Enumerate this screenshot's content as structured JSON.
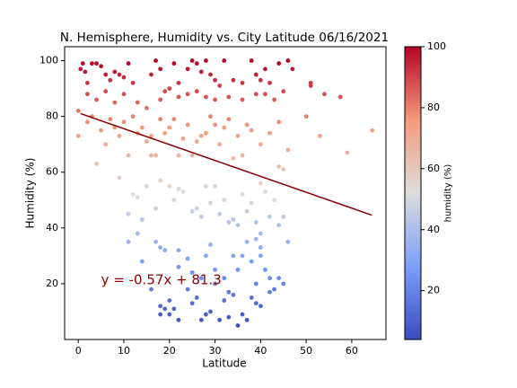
{
  "chart_data": {
    "type": "scatter",
    "title": "N. Hemisphere, Humidity vs. City Latitude  06/16/2021",
    "xlabel": "Latitude",
    "ylabel": "Humidity (%)",
    "colorbar_label": "humidity (%)",
    "colormap": "coolwarm",
    "clim": [
      4,
      100
    ],
    "cticks": [
      20,
      40,
      60,
      80,
      100
    ],
    "xlim": [
      -3,
      67.5
    ],
    "ylim": [
      0,
      105
    ],
    "xticks": [
      0,
      10,
      20,
      30,
      40,
      50,
      60
    ],
    "yticks": [
      20,
      40,
      60,
      80,
      100
    ],
    "regression": {
      "slope": -0.57,
      "intercept": 81.3,
      "x": [
        0.5,
        64.4
      ],
      "color": "#8b0000"
    },
    "annotation": "y = -0.57x + 81.3",
    "x": [
      0.5,
      1,
      1.5,
      2,
      3,
      4,
      5,
      6,
      7,
      8,
      9,
      10,
      11,
      12,
      16,
      17,
      18,
      19,
      21,
      22,
      24,
      25,
      26,
      27,
      28,
      29,
      30,
      31,
      32,
      34,
      36,
      38,
      39,
      40,
      41,
      42,
      44,
      46,
      47,
      51,
      54,
      57.5,
      2,
      4,
      6,
      8,
      10,
      13,
      15,
      18,
      20,
      22,
      24,
      26,
      28,
      30,
      33,
      36,
      39,
      41,
      43,
      45,
      51,
      0,
      0,
      2,
      3,
      5,
      6,
      7,
      8,
      9,
      10,
      11,
      12,
      13,
      14,
      15,
      16,
      17,
      18,
      19,
      20,
      21,
      22,
      23,
      24,
      25,
      26,
      27,
      28,
      29,
      30,
      31,
      32,
      33,
      34,
      35,
      36,
      37,
      38,
      40,
      42,
      44,
      46,
      50,
      53,
      59,
      64.5,
      44,
      4,
      45,
      16,
      12,
      13,
      15,
      17,
      18,
      20,
      21,
      22,
      23,
      25,
      26,
      27,
      28,
      29,
      30,
      31,
      32,
      33,
      34,
      35,
      36,
      37,
      38,
      39,
      40,
      41,
      42,
      43,
      44,
      45,
      9,
      11,
      14,
      11,
      13,
      14,
      17,
      18,
      19,
      22,
      22,
      24,
      25,
      27,
      28,
      29,
      30,
      32,
      33,
      34,
      35,
      36,
      37,
      38,
      39,
      40,
      41,
      42,
      43,
      44,
      45,
      46,
      39,
      40,
      40,
      16,
      18,
      18,
      19,
      20,
      20,
      22,
      24,
      25,
      26,
      27,
      28,
      29,
      30,
      31,
      32,
      33,
      34,
      35,
      36,
      37,
      38,
      39,
      40,
      42,
      21
    ],
    "y": [
      97,
      99,
      96,
      92,
      99,
      99,
      98,
      95,
      93,
      96,
      95,
      94,
      99,
      92,
      95,
      100,
      97,
      89,
      99,
      92,
      97,
      100,
      99,
      96,
      100,
      95,
      93,
      91,
      100,
      93,
      92,
      100,
      95,
      93,
      97,
      92,
      99,
      100,
      97,
      92,
      88,
      87,
      88,
      86,
      89,
      85,
      88,
      85,
      83,
      86,
      90,
      87,
      88,
      89,
      87,
      86,
      87,
      86,
      88,
      88,
      86,
      89,
      91,
      82,
      73,
      78,
      80,
      75,
      70,
      79,
      76,
      73,
      78,
      66,
      80,
      74,
      76,
      71,
      73,
      66,
      79,
      74,
      76,
      79,
      66,
      72,
      77,
      66,
      71,
      73,
      74,
      80,
      77,
      70,
      76,
      79,
      65,
      73,
      66,
      77,
      75,
      70,
      74,
      78,
      68,
      80,
      73,
      67,
      75,
      62,
      63,
      61,
      66,
      52,
      51,
      55,
      47,
      57,
      55,
      50,
      54,
      53,
      46,
      47,
      44,
      55,
      49,
      55,
      45,
      50,
      42,
      43,
      41,
      52,
      46,
      49,
      42,
      56,
      53,
      44,
      50,
      41,
      44,
      58,
      45,
      43,
      35,
      38,
      28,
      35,
      33,
      32,
      32,
      26,
      29,
      24,
      22,
      30,
      34,
      25,
      22,
      17,
      30,
      25,
      30,
      35,
      28,
      20,
      30,
      25,
      22,
      18,
      22,
      20,
      35,
      36,
      33,
      38,
      18,
      12,
      9,
      11,
      9,
      14,
      7,
      18,
      13,
      15,
      7,
      9,
      10,
      20,
      7,
      14,
      8,
      16,
      5,
      9,
      7,
      15,
      13,
      12,
      17,
      11
    ]
  }
}
